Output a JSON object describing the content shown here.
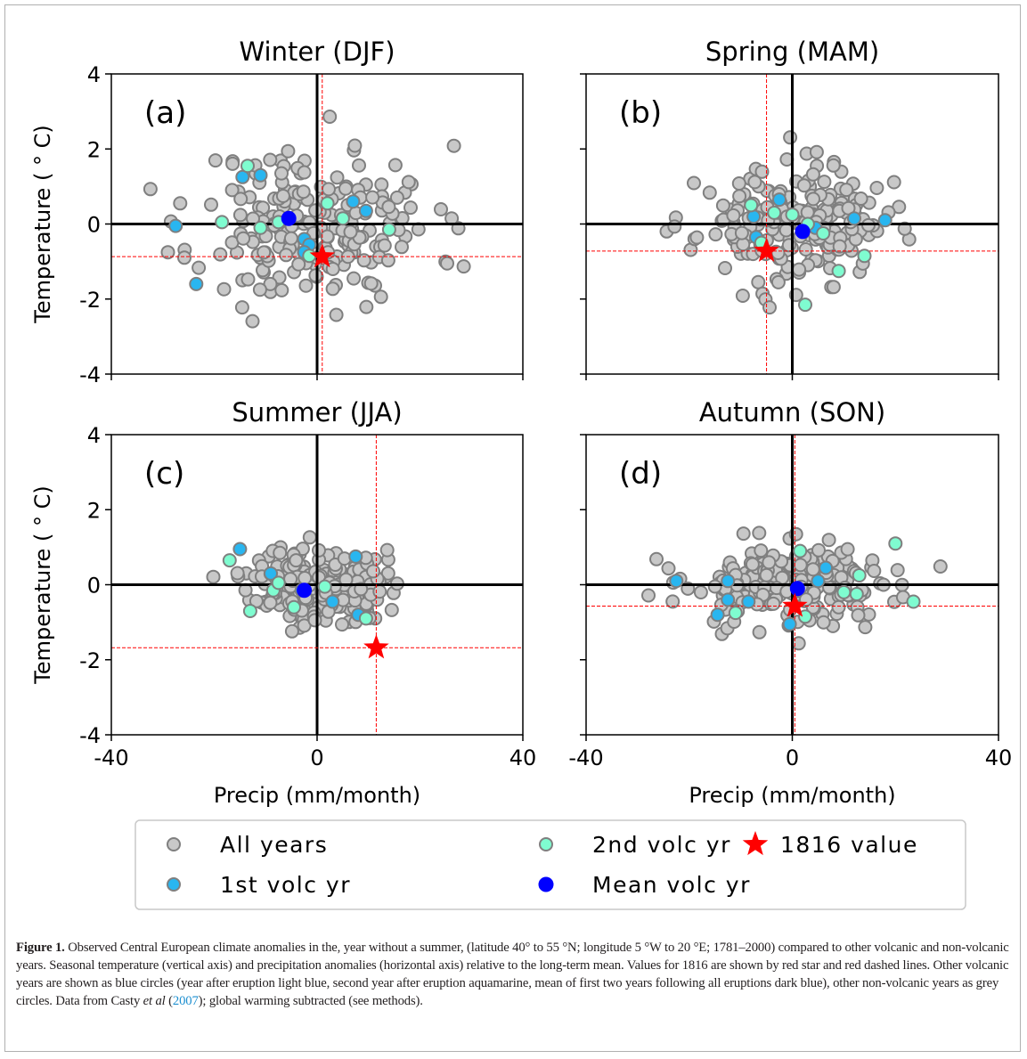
{
  "figure": {
    "colors": {
      "all": "#c8c8c8",
      "all_edge": "#7f7f7f",
      "first": "#29b6f0",
      "second": "#7ffcd0",
      "mean": "#0000ff",
      "star": "#ff0000",
      "axis": "#000000"
    },
    "legend": [
      {
        "key": "all",
        "label": "All years"
      },
      {
        "key": "second",
        "label": "2nd volc yr"
      },
      {
        "key": "star",
        "label": "1816 value"
      },
      {
        "key": "first",
        "label": "1st volc yr"
      },
      {
        "key": "mean",
        "label": "Mean volc yr"
      }
    ],
    "caption": {
      "label": "Figure 1.",
      "part1": " Observed Central European climate anomalies in the, year without a summer, (latitude 40° to 55 °N; longitude 5 °W to 20 °E; 1781–2000) compared to other volcanic and non-volcanic years. Seasonal temperature (vertical axis) and precipitation anomalies (horizontal axis) relative to the long-term mean. Values for 1816 are shown by red star and red dashed lines. Other volcanic years are shown as blue circles (year after eruption light blue, second year after eruption aquamarine, mean of first two years following all eruptions dark blue), other non-volcanic years as grey circles. Data from Casty ",
      "etal": "et al",
      "open": " (",
      "ref": "2007",
      "part2": "); global warming subtracted (see methods)."
    }
  },
  "chart_data": [
    {
      "type": "scatter",
      "panel_label": "(a)",
      "title": "Winter (DJF)",
      "xlabel": "",
      "ylabel": "Temperature ( ° C)",
      "xlim": [
        -40,
        40
      ],
      "ylim": [
        -4,
        4
      ],
      "xticks": [
        -40,
        0,
        40
      ],
      "yticks": [
        -4,
        -2,
        0,
        2,
        4
      ],
      "value_1816": {
        "x": 1,
        "y": -0.87
      },
      "first_volc_yr": [
        [
          -27.5,
          -0.05
        ],
        [
          -14.5,
          1.25
        ],
        [
          -11,
          1.3
        ],
        [
          -2.5,
          -0.4
        ],
        [
          7,
          0.6
        ],
        [
          9.5,
          0.35
        ],
        [
          -23.5,
          -1.6
        ],
        [
          -1.5,
          -0.55
        ],
        [
          -2.5,
          -0.75
        ]
      ],
      "second_volc_yr": [
        [
          -13.5,
          1.55
        ],
        [
          -18.5,
          0.05
        ],
        [
          -7.5,
          0.05
        ],
        [
          2,
          0.55
        ],
        [
          5,
          0.15
        ],
        [
          14,
          -0.15
        ],
        [
          -1.5,
          -0.85
        ],
        [
          -11,
          -0.1
        ]
      ],
      "mean_volc_yr": [
        [
          -5.5,
          0.15
        ]
      ]
    },
    {
      "type": "scatter",
      "panel_label": "(b)",
      "title": "Spring (MAM)",
      "xlabel": "",
      "ylabel": "",
      "xlim": [
        -40,
        40
      ],
      "ylim": [
        -4,
        4
      ],
      "xticks": [
        -40,
        0,
        40
      ],
      "yticks": [
        -4,
        -2,
        0,
        2,
        4
      ],
      "value_1816": {
        "x": -5,
        "y": -0.72
      },
      "first_volc_yr": [
        [
          -2.5,
          0.65
        ],
        [
          -7.5,
          0.2
        ],
        [
          -7,
          -0.35
        ],
        [
          4.5,
          -0.1
        ],
        [
          12,
          0.15
        ],
        [
          18,
          0.1
        ]
      ],
      "second_volc_yr": [
        [
          -8,
          0.5
        ],
        [
          -3.5,
          0.3
        ],
        [
          0,
          0.25
        ],
        [
          3,
          0.0
        ],
        [
          6,
          -0.25
        ],
        [
          9,
          -1.25
        ],
        [
          14,
          -0.85
        ],
        [
          2.5,
          -2.15
        ],
        [
          -6,
          -0.5
        ]
      ],
      "mean_volc_yr": [
        [
          2,
          -0.2
        ]
      ]
    },
    {
      "type": "scatter",
      "panel_label": "(c)",
      "title": "Summer (JJA)",
      "xlabel": "Precip (mm/month)",
      "ylabel": "Temperature ( ° C)",
      "xlim": [
        -40,
        40
      ],
      "ylim": [
        -4,
        4
      ],
      "xticks": [
        -40,
        0,
        40
      ],
      "yticks": [
        -4,
        -2,
        0,
        2,
        4
      ],
      "value_1816": {
        "x": 11.5,
        "y": -1.68
      },
      "first_volc_yr": [
        [
          -15,
          0.95
        ],
        [
          -9,
          0.3
        ],
        [
          -3,
          -0.15
        ],
        [
          7.5,
          0.75
        ],
        [
          3,
          -0.45
        ],
        [
          8,
          -0.8
        ]
      ],
      "second_volc_yr": [
        [
          -17,
          0.65
        ],
        [
          -13,
          -0.7
        ],
        [
          -8.5,
          -0.15
        ],
        [
          -7.5,
          0.05
        ],
        [
          1.5,
          -0.05
        ],
        [
          9.5,
          -0.9
        ],
        [
          -4.5,
          -0.6
        ]
      ],
      "mean_volc_yr": [
        [
          -2.5,
          -0.15
        ]
      ]
    },
    {
      "type": "scatter",
      "panel_label": "(d)",
      "title": "Autumn (SON)",
      "xlabel": "Precip (mm/month)",
      "ylabel": "",
      "xlim": [
        -40,
        40
      ],
      "ylim": [
        -4,
        4
      ],
      "xticks": [
        -40,
        0,
        40
      ],
      "yticks": [
        -4,
        -2,
        0,
        2,
        4
      ],
      "value_1816": {
        "x": 0.5,
        "y": -0.57
      },
      "first_volc_yr": [
        [
          -22.5,
          0.1
        ],
        [
          -14.5,
          -0.8
        ],
        [
          -12.5,
          0.1
        ],
        [
          -8.5,
          -0.45
        ],
        [
          -0.5,
          -1.05
        ],
        [
          6.5,
          0.45
        ],
        [
          5,
          0.1
        ],
        [
          -12.5,
          -0.4
        ]
      ],
      "second_volc_yr": [
        [
          1.5,
          0.9
        ],
        [
          -11,
          -0.75
        ],
        [
          10,
          -0.2
        ],
        [
          12.5,
          -0.25
        ],
        [
          13,
          0.25
        ],
        [
          20,
          1.1
        ],
        [
          23.5,
          -0.45
        ],
        [
          2.5,
          -0.85
        ]
      ],
      "mean_volc_yr": [
        [
          1,
          -0.1
        ]
      ]
    }
  ]
}
